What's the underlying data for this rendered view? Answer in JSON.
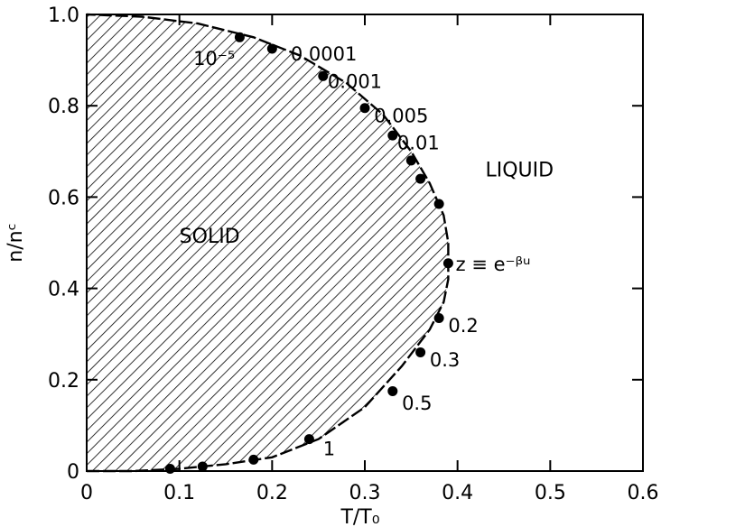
{
  "chart_data": {
    "type": "scatter",
    "xlabel": "T/T₀",
    "ylabel": "n/nᶜ",
    "xlim": [
      0,
      0.6
    ],
    "ylim": [
      0,
      1.0
    ],
    "x_ticks": [
      "0",
      "0.1",
      "0.2",
      "0.3",
      "0.4",
      "0.5",
      "0.6"
    ],
    "y_ticks": [
      "0",
      "0.2",
      "0.4",
      "0.6",
      "0.8",
      "1.0"
    ],
    "grid": false,
    "region_labels": {
      "solid": "SOLID",
      "liquid": "LIQUID"
    },
    "curve_annotation": "z ≡ e⁻ᵝᵘ",
    "boundary": {
      "x": [
        0.0,
        0.05,
        0.1,
        0.15,
        0.2,
        0.25,
        0.3,
        0.34,
        0.37,
        0.385,
        0.39,
        0.39,
        0.385,
        0.37,
        0.35,
        0.32,
        0.28,
        0.23,
        0.18,
        0.12,
        0.06,
        0.0
      ],
      "y": [
        0.0,
        0.0,
        0.005,
        0.015,
        0.03,
        0.07,
        0.14,
        0.23,
        0.31,
        0.37,
        0.42,
        0.5,
        0.56,
        0.63,
        0.7,
        0.78,
        0.85,
        0.91,
        0.95,
        0.98,
        0.995,
        1.0
      ]
    },
    "series": [
      {
        "x": [
          0.165,
          0.2,
          0.255,
          0.3,
          0.33,
          0.35,
          0.36,
          0.38,
          0.39,
          0.38,
          0.36,
          0.33,
          0.24,
          0.18,
          0.125,
          0.09
        ],
        "y": [
          0.95,
          0.925,
          0.865,
          0.795,
          0.735,
          0.68,
          0.64,
          0.585,
          0.455,
          0.335,
          0.26,
          0.175,
          0.07,
          0.025,
          0.01,
          0.005
        ]
      }
    ],
    "point_labels": [
      {
        "text": "10⁻⁵",
        "x": 0.115,
        "y": 0.905
      },
      {
        "text": "0.0001",
        "x": 0.22,
        "y": 0.915
      },
      {
        "text": "0.001",
        "x": 0.26,
        "y": 0.855
      },
      {
        "text": "0.005",
        "x": 0.31,
        "y": 0.78
      },
      {
        "text": "0.01",
        "x": 0.335,
        "y": 0.72
      },
      {
        "text": "0.2",
        "x": 0.39,
        "y": 0.32
      },
      {
        "text": "0.3",
        "x": 0.37,
        "y": 0.245
      },
      {
        "text": "0.5",
        "x": 0.34,
        "y": 0.15
      },
      {
        "text": "1",
        "x": 0.255,
        "y": 0.05
      }
    ]
  }
}
